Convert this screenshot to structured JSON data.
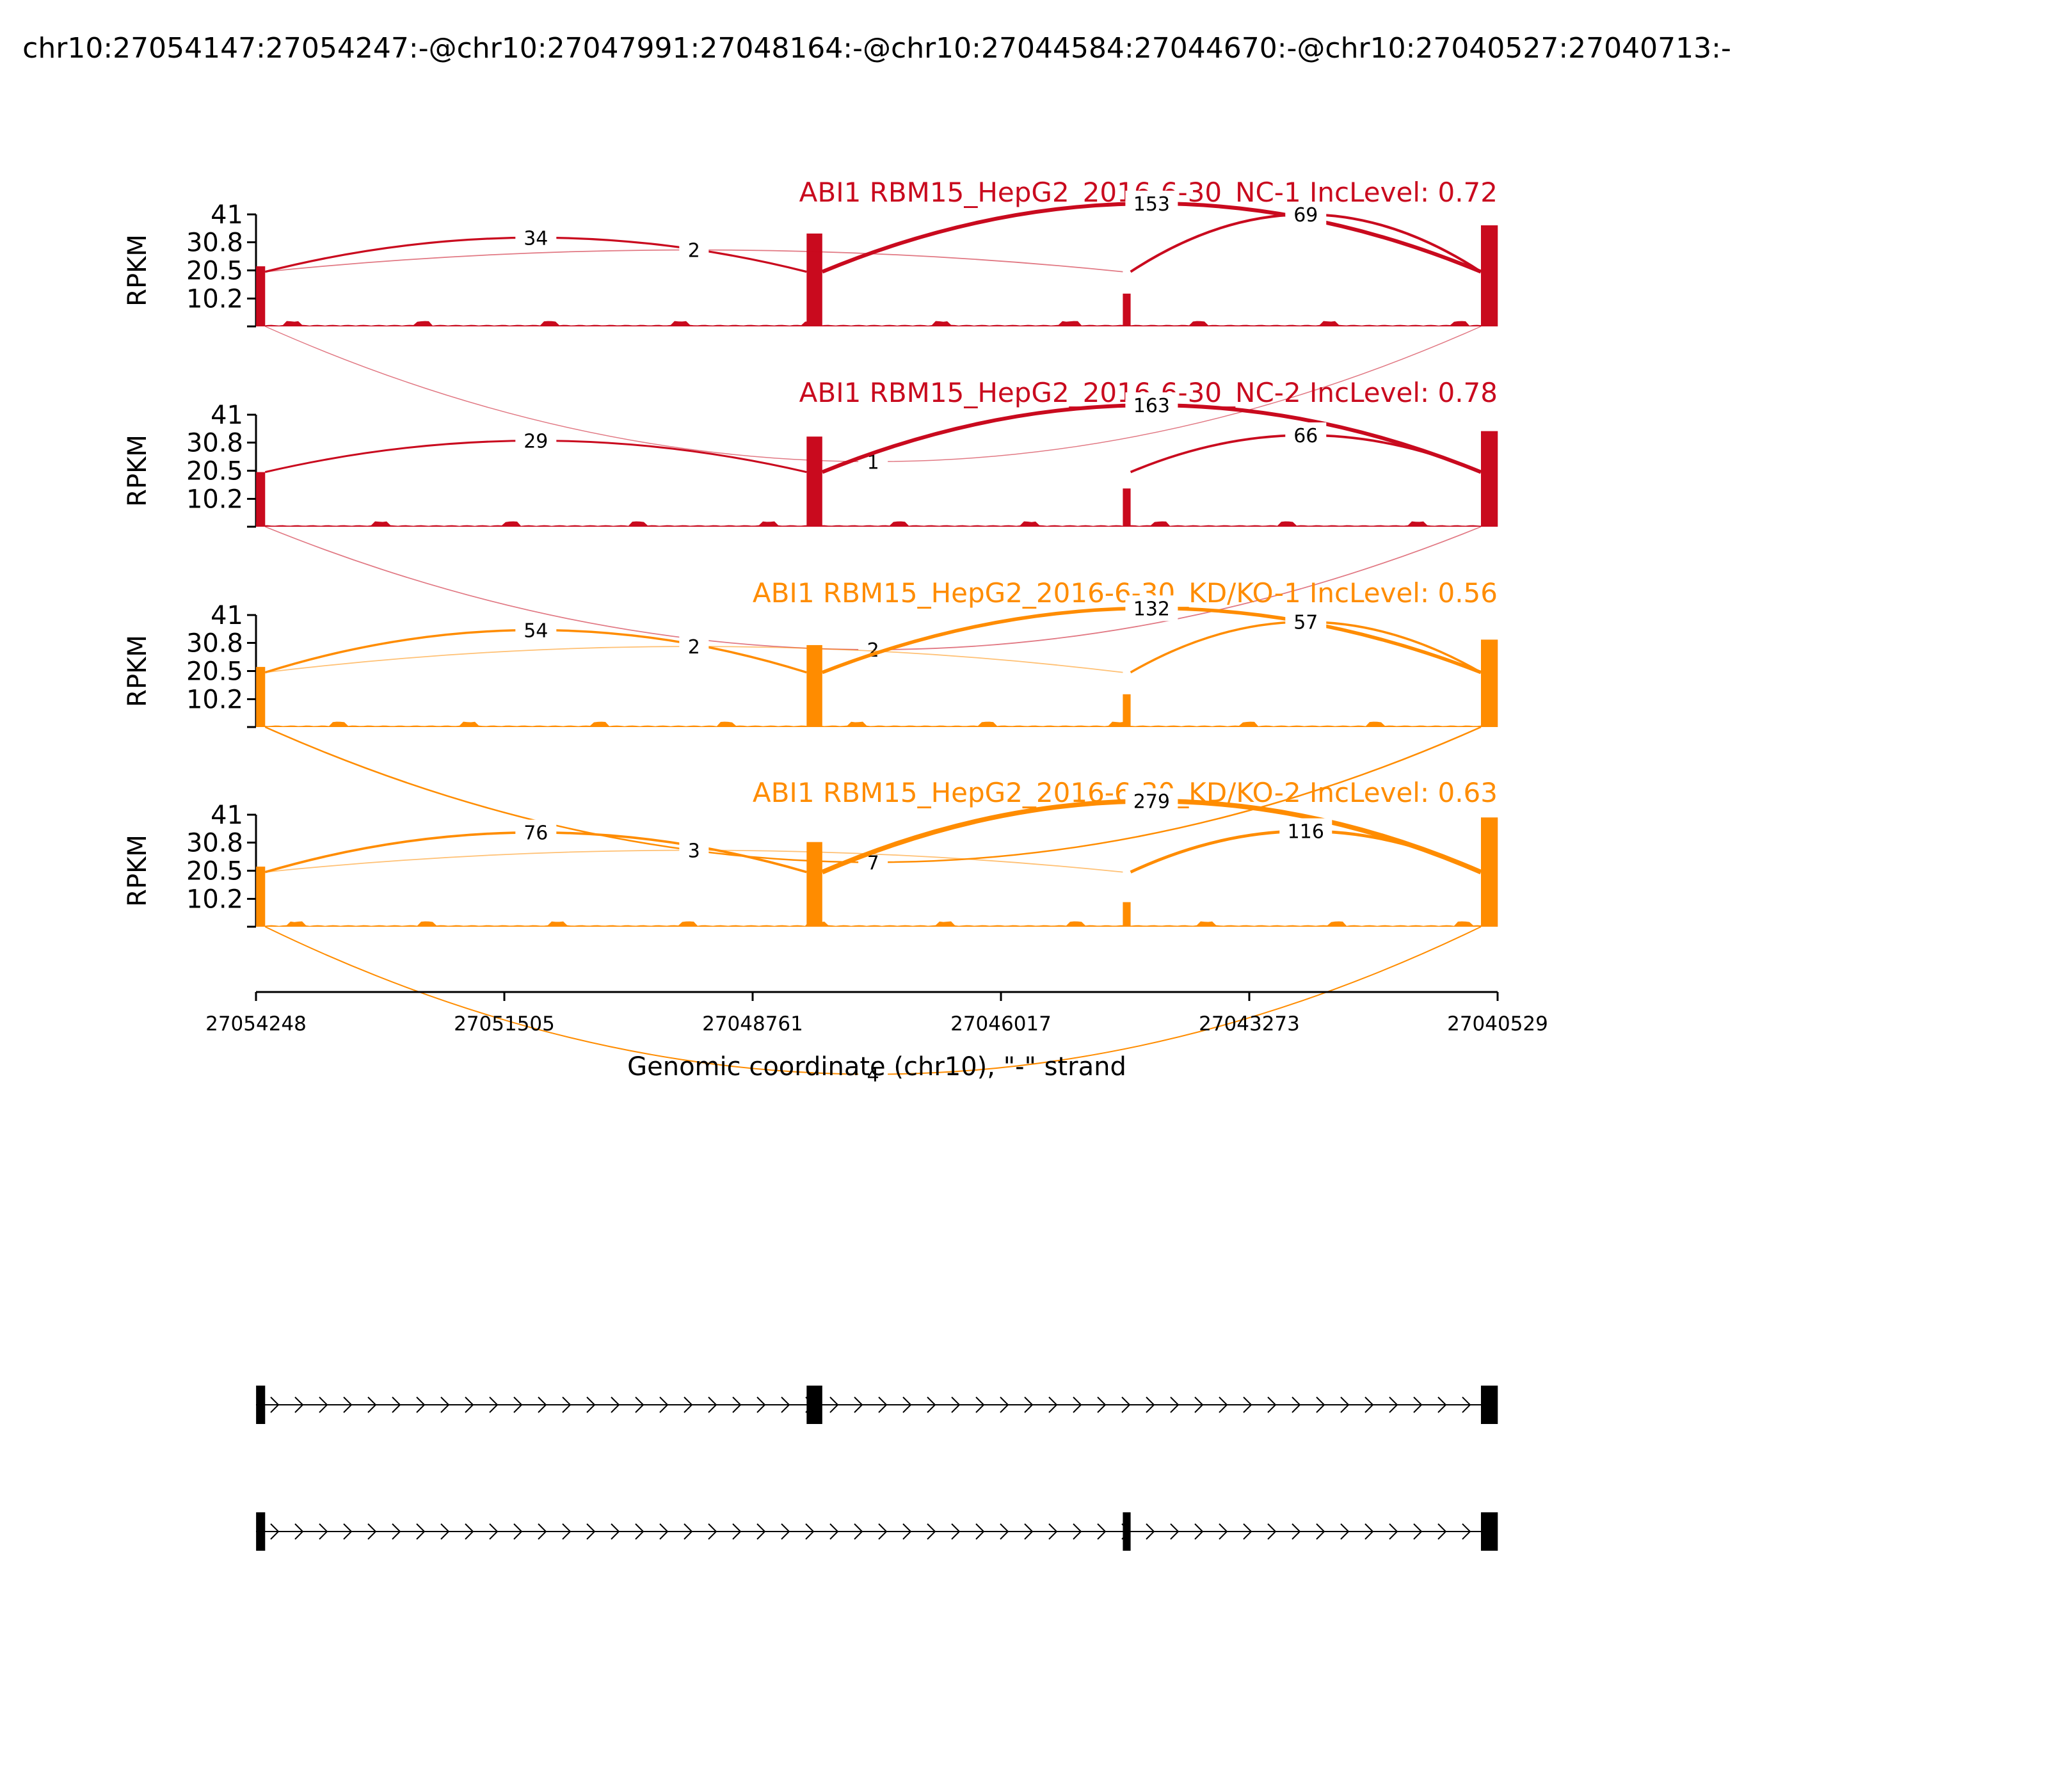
{
  "chart_data": {
    "type": "sashimi",
    "title": "chr10:27054147:27054247:-@chr10:27047991:27048164:-@chr10:27044584:27044670:-@chr10:27040527:27040713:-",
    "xlabel": "Genomic coordinate (chr10), \"-\" strand",
    "ylabel": "RPKM",
    "x_range": [
      27054248,
      27040529
    ],
    "x_ticks": [
      "27054248",
      "27051505",
      "27048761",
      "27046017",
      "27043273",
      "27040529"
    ],
    "y_range": [
      0,
      41
    ],
    "y_ticks": [
      "41",
      "30.8",
      "20.5",
      "10.2"
    ],
    "exons": [
      {
        "start": 27054247,
        "end": 27054147
      },
      {
        "start": 27048164,
        "end": 27047991
      },
      {
        "start": 27044670,
        "end": 27044584
      },
      {
        "start": 27040713,
        "end": 27040527
      }
    ],
    "tracks": [
      {
        "title": "ABI1 RBM15_HepG2_2016-6-30_NC-1 IncLevel: 0.72",
        "color": "#c90a1e",
        "exon_heights": [
          22,
          34,
          12,
          37
        ],
        "junctions": [
          {
            "from": 27054147,
            "to": 27048164,
            "count": "34",
            "side": "above",
            "height": 32.5,
            "weight": 0.45
          },
          {
            "from": 27054147,
            "to": 27044670,
            "count": "2",
            "side": "above",
            "height": 28.0,
            "weight": 0.15
          },
          {
            "from": 27047991,
            "to": 27040713,
            "count": "153",
            "side": "above",
            "height": 45.0,
            "weight": 1.0
          },
          {
            "from": 27044584,
            "to": 27040713,
            "count": "69",
            "side": "above",
            "height": 41.0,
            "weight": 0.6
          },
          {
            "from": 27054147,
            "to": 27040713,
            "count": "1",
            "side": "below",
            "height": 11.0,
            "weight": 0.1
          }
        ]
      },
      {
        "title": "ABI1 RBM15_HepG2_2016-6-30_NC-2 IncLevel: 0.78",
        "color": "#c90a1e",
        "exon_heights": [
          20,
          33,
          14,
          35
        ],
        "junctions": [
          {
            "from": 27054147,
            "to": 27048164,
            "count": "29",
            "side": "above",
            "height": 31.5,
            "weight": 0.4
          },
          {
            "from": 27047991,
            "to": 27040713,
            "count": "163",
            "side": "above",
            "height": 44.5,
            "weight": 1.0
          },
          {
            "from": 27044584,
            "to": 27040713,
            "count": "66",
            "side": "above",
            "height": 33.5,
            "weight": 0.55
          },
          {
            "from": 27054147,
            "to": 27040713,
            "count": "2",
            "side": "below",
            "height": 10.0,
            "weight": 0.15
          }
        ]
      },
      {
        "title": "ABI1 RBM15_HepG2_2016-6-30_KD/KO-1 IncLevel: 0.56",
        "color": "#ff8c00",
        "exon_heights": [
          22,
          30,
          12,
          32
        ],
        "junctions": [
          {
            "from": 27054147,
            "to": 27048164,
            "count": "54",
            "side": "above",
            "height": 35.5,
            "weight": 0.5
          },
          {
            "from": 27054147,
            "to": 27044670,
            "count": "2",
            "side": "above",
            "height": 29.5,
            "weight": 0.15
          },
          {
            "from": 27047991,
            "to": 27040713,
            "count": "132",
            "side": "above",
            "height": 43.5,
            "weight": 0.9
          },
          {
            "from": 27044584,
            "to": 27040713,
            "count": "57",
            "side": "above",
            "height": 38.5,
            "weight": 0.5
          },
          {
            "from": 27054147,
            "to": 27040713,
            "count": "7",
            "side": "below",
            "height": 11.0,
            "weight": 0.3
          }
        ]
      },
      {
        "title": "ABI1 RBM15_HepG2_2016-6-30_KD/KO-2 IncLevel: 0.63",
        "color": "#ff8c00",
        "exon_heights": [
          22,
          31,
          9,
          40
        ],
        "junctions": [
          {
            "from": 27054147,
            "to": 27048164,
            "count": "76",
            "side": "above",
            "height": 34.5,
            "weight": 0.55
          },
          {
            "from": 27054147,
            "to": 27044670,
            "count": "3",
            "side": "above",
            "height": 28.0,
            "weight": 0.15
          },
          {
            "from": 27047991,
            "to": 27040713,
            "count": "279",
            "side": "above",
            "height": 46.0,
            "weight": 1.3
          },
          {
            "from": 27044584,
            "to": 27040713,
            "count": "116",
            "side": "above",
            "height": 35.0,
            "weight": 0.75
          },
          {
            "from": 27054147,
            "to": 27040713,
            "count": "4",
            "side": "below",
            "height": 12.0,
            "weight": 0.2
          }
        ]
      }
    ],
    "transcripts": [
      {
        "exons": [
          0,
          1,
          3
        ]
      },
      {
        "exons": [
          0,
          2,
          3
        ]
      }
    ]
  }
}
